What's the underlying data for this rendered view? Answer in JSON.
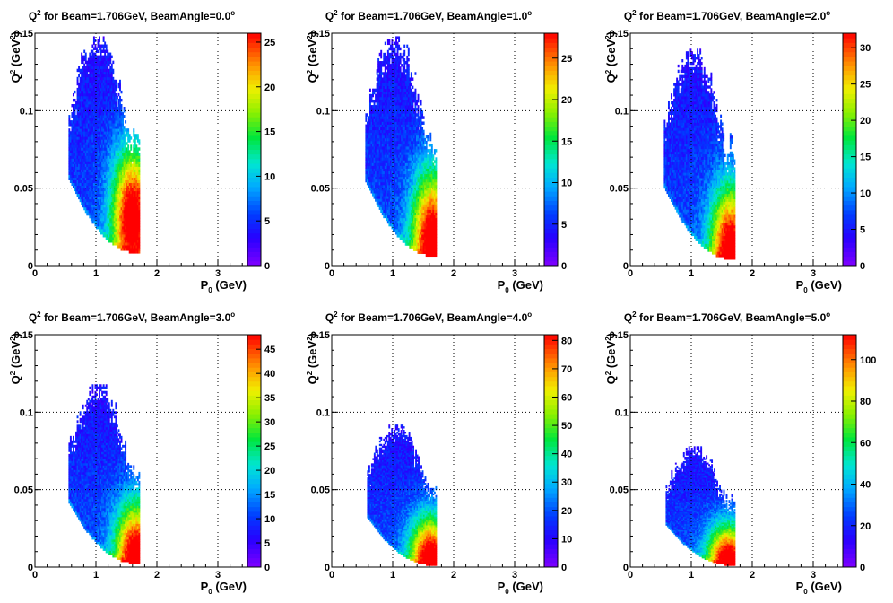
{
  "chart_data": [
    {
      "type": "heatmap",
      "title": "Q² for Beam=1.706GeV, BeamAngle=0.0°",
      "xlabel": "P0 (GeV)",
      "ylabel": "Q² (GeV²)",
      "xlim": [
        0,
        3.5
      ],
      "ylim": [
        0,
        0.15
      ],
      "xticks": [
        "0",
        "1",
        "2",
        "3"
      ],
      "yticks": [
        "0",
        "0.05",
        "0.1",
        "0.15"
      ],
      "grid": true,
      "colorbar": {
        "min": 0,
        "max": 26,
        "ticks": [
          "0",
          "5",
          "10",
          "15",
          "20",
          "25"
        ]
      },
      "region": {
        "p_min": 0.55,
        "p_max": 1.72,
        "q2_min": 0.008,
        "q2_max": 0.148,
        "hot_p": 1.6,
        "hot_q2": 0.03
      }
    },
    {
      "type": "heatmap",
      "title": "Q² for Beam=1.706GeV, BeamAngle=1.0°",
      "xlabel": "P0 (GeV)",
      "ylabel": "Q² (GeV²)",
      "xlim": [
        0,
        3.5
      ],
      "ylim": [
        0,
        0.15
      ],
      "xticks": [
        "0",
        "1",
        "2",
        "3"
      ],
      "yticks": [
        "0",
        "0.05",
        "0.1",
        "0.15"
      ],
      "grid": true,
      "colorbar": {
        "min": 0,
        "max": 28,
        "ticks": [
          "0",
          "5",
          "10",
          "15",
          "20",
          "25"
        ]
      },
      "region": {
        "p_min": 0.55,
        "p_max": 1.72,
        "q2_min": 0.006,
        "q2_max": 0.148,
        "hot_p": 1.65,
        "hot_q2": 0.015
      }
    },
    {
      "type": "heatmap",
      "title": "Q² for Beam=1.706GeV, BeamAngle=2.0°",
      "xlabel": "P0 (GeV)",
      "ylabel": "Q² (GeV²)",
      "xlim": [
        0,
        3.5
      ],
      "ylim": [
        0,
        0.15
      ],
      "xticks": [
        "0",
        "1",
        "2",
        "3"
      ],
      "yticks": [
        "0",
        "0.05",
        "0.1",
        "0.15"
      ],
      "grid": true,
      "colorbar": {
        "min": 0,
        "max": 32,
        "ticks": [
          "0",
          "5",
          "10",
          "15",
          "20",
          "25",
          "30"
        ]
      },
      "region": {
        "p_min": 0.55,
        "p_max": 1.72,
        "q2_min": 0.004,
        "q2_max": 0.14,
        "hot_p": 1.65,
        "hot_q2": 0.008
      }
    },
    {
      "type": "heatmap",
      "title": "Q² for Beam=1.706GeV, BeamAngle=3.0°",
      "xlabel": "P0 (GeV)",
      "ylabel": "Q² (GeV²)",
      "xlim": [
        0,
        3.5
      ],
      "ylim": [
        0,
        0.15
      ],
      "xticks": [
        "0",
        "1",
        "2",
        "3"
      ],
      "yticks": [
        "0",
        "0.05",
        "0.1",
        "0.15"
      ],
      "grid": true,
      "colorbar": {
        "min": 0,
        "max": 48,
        "ticks": [
          "0",
          "5",
          "10",
          "15",
          "20",
          "25",
          "30",
          "35",
          "40",
          "45"
        ]
      },
      "region": {
        "p_min": 0.55,
        "p_max": 1.72,
        "q2_min": 0.002,
        "q2_max": 0.118,
        "hot_p": 1.65,
        "hot_q2": 0.005
      }
    },
    {
      "type": "heatmap",
      "title": "Q² for Beam=1.706GeV, BeamAngle=4.0°",
      "xlabel": "P0 (GeV)",
      "ylabel": "Q² (GeV²)",
      "xlim": [
        0,
        3.5
      ],
      "ylim": [
        0,
        0.15
      ],
      "xticks": [
        "0",
        "1",
        "2",
        "3"
      ],
      "yticks": [
        "0",
        "0.05",
        "0.1",
        "0.15"
      ],
      "grid": true,
      "colorbar": {
        "min": 0,
        "max": 82,
        "ticks": [
          "0",
          "10",
          "20",
          "30",
          "40",
          "50",
          "60",
          "70",
          "80"
        ]
      },
      "region": {
        "p_min": 0.58,
        "p_max": 1.72,
        "q2_min": 0.001,
        "q2_max": 0.092,
        "hot_p": 1.62,
        "hot_q2": 0.004
      }
    },
    {
      "type": "heatmap",
      "title": "Q² for Beam=1.706GeV, BeamAngle=5.0°",
      "xlabel": "P0 (GeV)",
      "ylabel": "Q² (GeV²)",
      "xlim": [
        0,
        3.5
      ],
      "ylim": [
        0,
        0.15
      ],
      "xticks": [
        "0",
        "1",
        "2",
        "3"
      ],
      "yticks": [
        "0",
        "0.05",
        "0.1",
        "0.15"
      ],
      "grid": true,
      "colorbar": {
        "min": 0,
        "max": 112,
        "ticks": [
          "0",
          "20",
          "40",
          "60",
          "80",
          "100"
        ]
      },
      "region": {
        "p_min": 0.58,
        "p_max": 1.72,
        "q2_min": 0.001,
        "q2_max": 0.078,
        "hot_p": 1.6,
        "hot_q2": 0.003
      }
    }
  ]
}
